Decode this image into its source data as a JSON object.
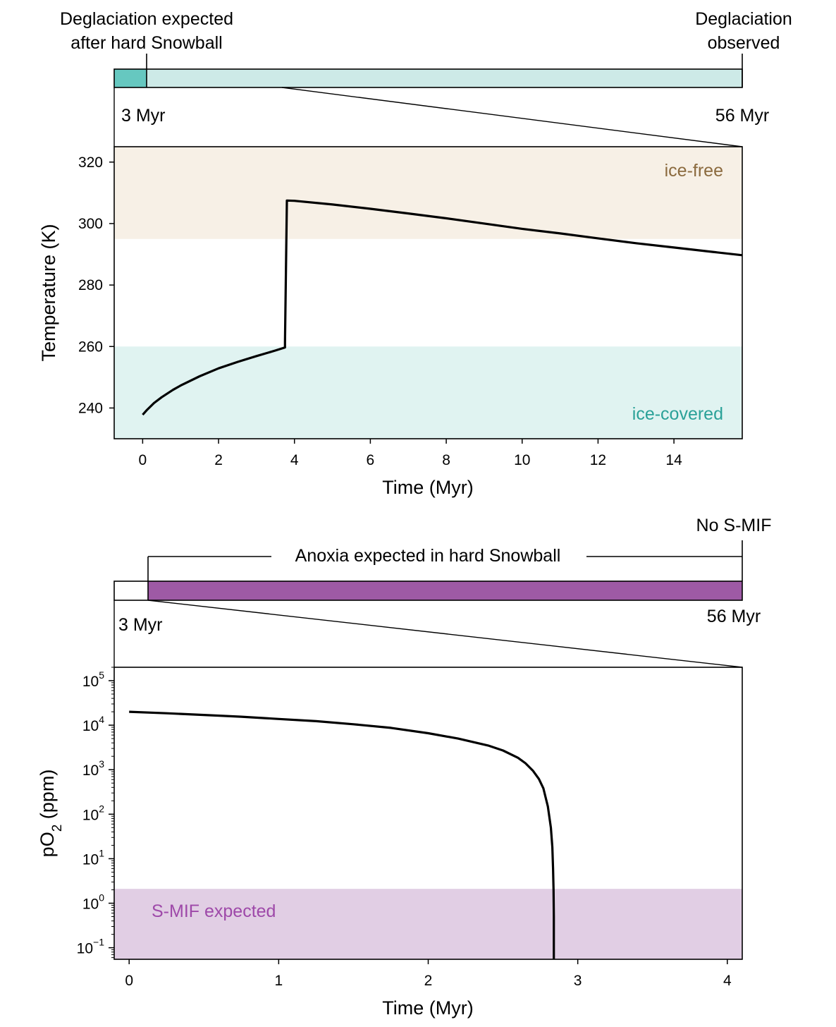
{
  "chart_data": [
    {
      "type": "timeline-bar",
      "panel": "top-timeline",
      "scale_start_myr": 0,
      "scale_end_myr": 56,
      "marker_myr": 3,
      "marker_label": "3 Myr",
      "end_label": "56 Myr",
      "left_annotation": [
        "Deglaciation expected",
        "after hard Snowball"
      ],
      "right_annotation": [
        "Deglaciation",
        "observed"
      ],
      "zoom_range_myr": [
        0,
        15.8
      ],
      "colors": {
        "before_marker": "#66c8c0",
        "after_marker": "#cdeae7"
      }
    },
    {
      "type": "line",
      "panel": "temperature",
      "xlabel": "Time (Myr)",
      "ylabel": "Temperature (K)",
      "xlim": [
        -0.75,
        15.8
      ],
      "ylim": [
        230,
        325
      ],
      "xticks": [
        0,
        2,
        4,
        6,
        8,
        10,
        12,
        14
      ],
      "yticks": [
        240,
        260,
        280,
        300,
        320
      ],
      "grid": false,
      "bands": [
        {
          "label": "ice-free",
          "y0": 295,
          "y1": 325,
          "color": "#f7f0e6",
          "label_color": "#8b6a3e"
        },
        {
          "label": "ice-covered",
          "y0": 230,
          "y1": 260,
          "color": "#e0f3f1",
          "label_color": "#2aa198"
        }
      ],
      "series": [
        {
          "color": "#000000",
          "x": [
            0,
            0.1,
            0.3,
            0.5,
            0.8,
            1.0,
            1.5,
            2.0,
            2.5,
            3.0,
            3.5,
            3.75,
            3.75,
            3.8,
            4,
            5,
            6,
            7,
            8,
            9,
            10,
            11,
            12,
            13,
            14,
            15,
            15.8
          ],
          "y": [
            237.8,
            239.2,
            241.6,
            243.5,
            245.9,
            247.3,
            250.3,
            252.9,
            255.0,
            256.9,
            258.7,
            259.7,
            261.5,
            307.5,
            307.4,
            306.2,
            304.8,
            303.3,
            301.7,
            300.0,
            298.3,
            296.8,
            295.2,
            293.6,
            292.2,
            290.8,
            289.7
          ]
        }
      ]
    },
    {
      "type": "timeline-bar",
      "panel": "bottom-timeline",
      "scale_start_myr": 0,
      "scale_end_myr": 56,
      "marker_myr": 3,
      "marker_label": "3 Myr",
      "end_label": "56 Myr",
      "bracket_annotation": "Anoxia expected in hard Snowball",
      "right_annotation": [
        "No S-MIF"
      ],
      "zoom_range_myr": [
        0,
        4.1
      ],
      "colors": {
        "before_marker": "#ffffff",
        "after_marker": "#9e5aa5"
      }
    },
    {
      "type": "line",
      "panel": "oxygen",
      "xlabel": "Time (Myr)",
      "ylabel": "pO2 (ppm)",
      "ylabel_parts": [
        "pO",
        "2",
        " (ppm)"
      ],
      "yscale": "log",
      "xlim": [
        -0.1,
        4.1
      ],
      "ylim": [
        0.055,
        200000
      ],
      "xticks": [
        0,
        1,
        2,
        3,
        4
      ],
      "ytick_exponents": [
        -1,
        0,
        1,
        2,
        3,
        4,
        5
      ],
      "ytick_base": "10",
      "grid": false,
      "bands": [
        {
          "label": "S-MIF expected",
          "y0": 0.055,
          "y1": 2.1,
          "color": "#e1cee4",
          "label_color": "#9e49a9"
        }
      ],
      "series": [
        {
          "color": "#000000",
          "x": [
            0,
            0.25,
            0.5,
            0.75,
            1.0,
            1.25,
            1.5,
            1.75,
            2.0,
            2.2,
            2.4,
            2.5,
            2.6,
            2.65,
            2.7,
            2.74,
            2.77,
            2.8,
            2.82,
            2.83,
            2.835,
            2.838,
            2.84,
            2.84
          ],
          "y": [
            20000,
            18500,
            17000,
            15500,
            13800,
            12300,
            10500,
            8700,
            6600,
            5000,
            3500,
            2700,
            1850,
            1400,
            950,
            620,
            380,
            150,
            50,
            18,
            6,
            2,
            0.5,
            0.055
          ]
        }
      ]
    }
  ]
}
